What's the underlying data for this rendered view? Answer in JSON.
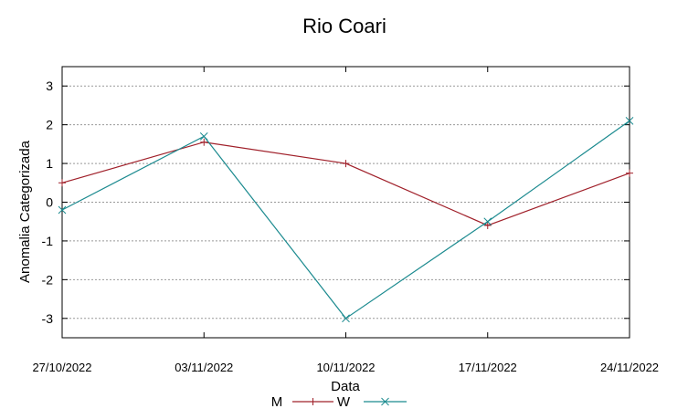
{
  "chart_data": {
    "type": "line",
    "title": "Rio Coari",
    "xlabel": "Data",
    "ylabel": "Anomalia Categorizada",
    "categories": [
      "27/10/2022",
      "03/11/2022",
      "10/11/2022",
      "17/11/2022",
      "24/11/2022"
    ],
    "yticks": [
      "3",
      "2",
      "1",
      "0",
      "-1",
      "-2",
      "-3"
    ],
    "ylim": [
      -3.5,
      3.5
    ],
    "grid": "horizontal dotted",
    "legend_position": "bottom-center",
    "series": [
      {
        "name": "M",
        "values": [
          0.5,
          1.55,
          1.0,
          -0.6,
          0.75
        ],
        "color": "#a0202a",
        "marker": "plus"
      },
      {
        "name": "W",
        "values": [
          -0.2,
          1.7,
          -3.0,
          -0.5,
          2.1
        ],
        "color": "#1b8a8f",
        "marker": "cross"
      }
    ]
  }
}
